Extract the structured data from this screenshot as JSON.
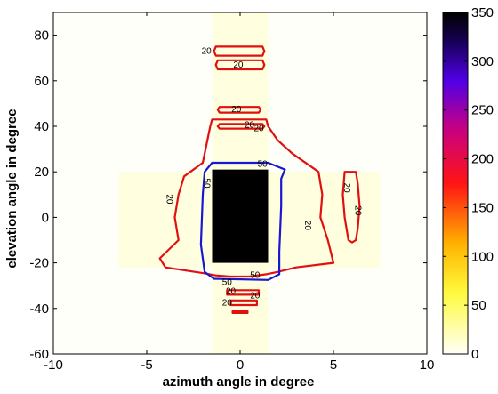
{
  "chart_data": {
    "type": "heatmap",
    "xlabel": "azimuth angle in degree",
    "ylabel": "elevation angle in degree",
    "xlim": [
      -10,
      10
    ],
    "ylim": [
      -60,
      90
    ],
    "x_ticks": [
      "-10",
      "-5",
      "0",
      "5",
      "10"
    ],
    "x_tick_values": [
      -10,
      -5,
      0,
      5,
      10
    ],
    "y_ticks": [
      "-60",
      "-40",
      "-20",
      "0",
      "20",
      "40",
      "60",
      "80"
    ],
    "y_tick_values": [
      -60,
      -40,
      -20,
      0,
      20,
      40,
      60,
      80
    ],
    "colorbar": {
      "min": 0,
      "max": 350,
      "colormap": "hot (reversed)",
      "ticks": [
        "0",
        "50",
        "100",
        "150",
        "200",
        "250",
        "300",
        "350"
      ],
      "tick_values": [
        0,
        50,
        100,
        150,
        200,
        250,
        300,
        350
      ]
    },
    "background_value": 0,
    "field_regions": [
      {
        "name": "vertical-band",
        "x": [
          -1.5,
          1.5
        ],
        "y": [
          -60,
          90
        ],
        "value": 8
      },
      {
        "name": "horizontal-band",
        "x": [
          -6.5,
          7.5
        ],
        "y": [
          -22,
          20
        ],
        "value": 8
      },
      {
        "name": "core",
        "x": [
          -1.5,
          1.5
        ],
        "y": [
          -20,
          21
        ],
        "value": 350
      }
    ],
    "contour_levels": [
      20,
      50
    ],
    "contour_colors": {
      "20": "#e01010",
      "50": "#1818d0"
    },
    "contours": [
      {
        "level": 20,
        "points": [
          [
            -1.3,
            71
          ],
          [
            1.2,
            71
          ],
          [
            1.3,
            73
          ],
          [
            1.2,
            75
          ],
          [
            -1.3,
            75
          ],
          [
            -1.4,
            73
          ]
        ]
      },
      {
        "level": 20,
        "points": [
          [
            -1.2,
            65
          ],
          [
            1.2,
            65
          ],
          [
            1.3,
            67
          ],
          [
            1.2,
            69
          ],
          [
            -1.2,
            69
          ],
          [
            -1.3,
            67
          ]
        ]
      },
      {
        "level": 20,
        "points": [
          [
            -1.1,
            46
          ],
          [
            1.0,
            46
          ],
          [
            1.1,
            47.3
          ],
          [
            1.0,
            48.5
          ],
          [
            -1.1,
            48.5
          ],
          [
            -1.2,
            47.3
          ]
        ]
      },
      {
        "level": 20,
        "points": [
          [
            -1.1,
            39
          ],
          [
            1.2,
            39
          ],
          [
            1.3,
            40
          ],
          [
            1.2,
            41
          ],
          [
            -1.1,
            41
          ],
          [
            -1.2,
            40
          ]
        ]
      },
      {
        "level": 20,
        "points": [
          [
            -1.5,
            43
          ],
          [
            1.4,
            43
          ],
          [
            1.5,
            40
          ],
          [
            2,
            34
          ],
          [
            2.8,
            28
          ],
          [
            4.2,
            20
          ],
          [
            4.4,
            10
          ],
          [
            4.3,
            0
          ],
          [
            4.7,
            -10
          ],
          [
            5,
            -20
          ],
          [
            3,
            -22
          ],
          [
            2,
            -24
          ],
          [
            1.4,
            -25
          ],
          [
            0.5,
            -26
          ],
          [
            -0.5,
            -26
          ],
          [
            -1.3,
            -25.5
          ],
          [
            -2,
            -24.5
          ],
          [
            -4,
            -22
          ],
          [
            -4.3,
            -18
          ],
          [
            -3.3,
            -10
          ],
          [
            -3.5,
            0
          ],
          [
            -3.3,
            10
          ],
          [
            -3,
            18
          ],
          [
            -2,
            24
          ],
          [
            -1.8,
            32
          ],
          [
            -1.6,
            40
          ]
        ]
      },
      {
        "level": 20,
        "points": [
          [
            -0.7,
            -32
          ],
          [
            1.0,
            -32
          ],
          [
            1.0,
            -34
          ],
          [
            -0.7,
            -34
          ]
        ]
      },
      {
        "level": 20,
        "points": [
          [
            -0.5,
            -36.5
          ],
          [
            0.9,
            -36.5
          ],
          [
            0.9,
            -38.5
          ],
          [
            -0.5,
            -38.5
          ]
        ]
      },
      {
        "level": 20,
        "points": [
          [
            -0.4,
            -41.2
          ],
          [
            0.4,
            -41.2
          ],
          [
            0.4,
            -42
          ],
          [
            -0.4,
            -42
          ]
        ]
      },
      {
        "level": 20,
        "points": [
          [
            5.6,
            20
          ],
          [
            6.2,
            20
          ],
          [
            6.3,
            15
          ],
          [
            6.4,
            5
          ],
          [
            6.3,
            -5
          ],
          [
            6.2,
            -10
          ],
          [
            6.0,
            -11
          ],
          [
            5.8,
            -10
          ],
          [
            5.6,
            0
          ],
          [
            5.5,
            10
          ]
        ]
      },
      {
        "level": 50,
        "points": [
          [
            -1.5,
            24
          ],
          [
            1.5,
            24
          ],
          [
            2.4,
            21
          ],
          [
            2.2,
            17
          ],
          [
            2.2,
            5
          ],
          [
            2.1,
            -15
          ],
          [
            2.1,
            -25
          ],
          [
            1.5,
            -27.5
          ],
          [
            -1.4,
            -27
          ],
          [
            -1.9,
            -24
          ],
          [
            -2.1,
            -12
          ],
          [
            -2,
            10
          ],
          [
            -1.9,
            20
          ]
        ]
      }
    ],
    "contour_labels": [
      {
        "text": "20",
        "x": -1.8,
        "y": 72.8
      },
      {
        "text": "20",
        "x": -0.1,
        "y": 66.8
      },
      {
        "text": "20",
        "x": -0.2,
        "y": 47.2
      },
      {
        "text": "20",
        "x": 0.5,
        "y": 40.5
      },
      {
        "text": "20",
        "x": 1.0,
        "y": 38.8
      },
      {
        "text": "20",
        "x": -3.8,
        "y": 8,
        "rotate": 90
      },
      {
        "text": "20",
        "x": 3.6,
        "y": -3.5,
        "rotate": 90
      },
      {
        "text": "20",
        "x": 5.7,
        "y": 13,
        "rotate": 90
      },
      {
        "text": "20",
        "x": 6.3,
        "y": 3,
        "rotate": 90
      },
      {
        "text": "50",
        "x": 1.2,
        "y": 23.2
      },
      {
        "text": "50",
        "x": -1.8,
        "y": 15,
        "rotate": 90
      },
      {
        "text": "50",
        "x": 0.8,
        "y": -25.5
      },
      {
        "text": "50",
        "x": -0.7,
        "y": -28.6
      },
      {
        "text": "20",
        "x": -0.5,
        "y": -32.6
      },
      {
        "text": "20",
        "x": 0.8,
        "y": -34.5
      },
      {
        "text": "20",
        "x": -0.7,
        "y": -37.7
      }
    ]
  }
}
